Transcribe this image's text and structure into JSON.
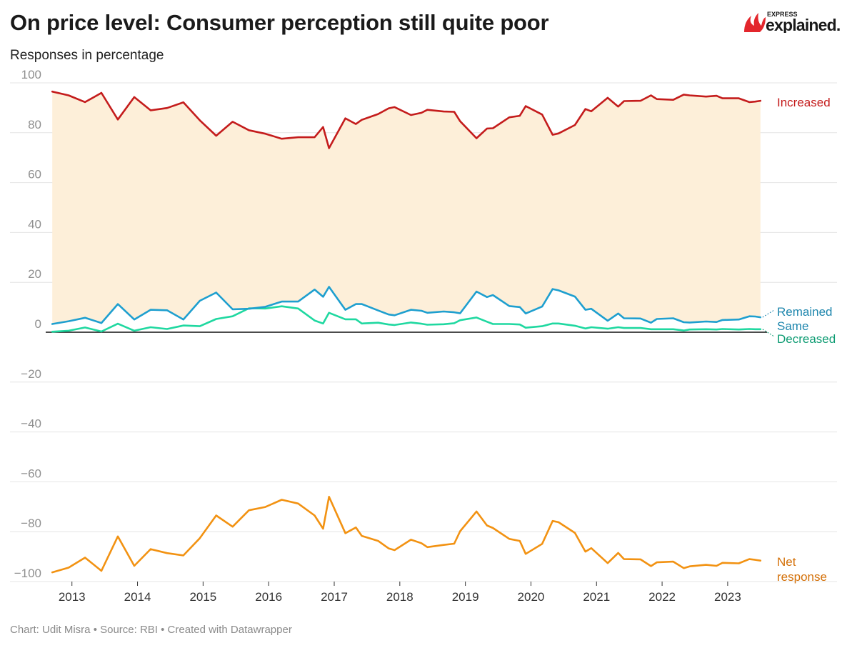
{
  "header": {
    "title": "On price level: Consumer perception still quite poor",
    "subtitle": "Responses in percentage",
    "logo_top": "EXPRESS",
    "logo_main": "explained."
  },
  "footer": {
    "credit": "Chart: Udit Misra • Source: RBI • Created with Datawrapper"
  },
  "colors": {
    "increased": "#c41c1c",
    "remained_same": "#1e9fcf",
    "decreased": "#1fd8a0",
    "net_response": "#f29212",
    "fill": "#fdefd9",
    "logo_red": "#e3262c"
  },
  "chart_data": {
    "type": "line",
    "ylim": [
      -100,
      100
    ],
    "yticks": [
      100,
      80,
      60,
      40,
      20,
      0,
      -20,
      -40,
      -60,
      -80,
      -100
    ],
    "ytick_labels": [
      "100",
      "80",
      "60",
      "40",
      "20",
      "0",
      "−20",
      "−40",
      "−60",
      "−80",
      "−100"
    ],
    "xlim": [
      2012.6,
      2023.6
    ],
    "xticks": [
      2013,
      2014,
      2015,
      2016,
      2017,
      2018,
      2019,
      2020,
      2021,
      2022,
      2023
    ],
    "xtick_labels": [
      "2013",
      "2014",
      "2015",
      "2016",
      "2017",
      "2018",
      "2019",
      "2020",
      "2021",
      "2022",
      "2023"
    ],
    "grid": true,
    "fill_between": [
      "Increased",
      "Remained Same"
    ],
    "x": [
      2012.7,
      2012.95,
      2013.2,
      2013.45,
      2013.7,
      2013.95,
      2014.2,
      2014.45,
      2014.7,
      2014.95,
      2015.2,
      2015.45,
      2015.7,
      2015.95,
      2016.2,
      2016.45,
      2016.7,
      2016.83,
      2016.92,
      2017.17,
      2017.33,
      2017.42,
      2017.67,
      2017.83,
      2017.92,
      2018.17,
      2018.33,
      2018.42,
      2018.67,
      2018.83,
      2018.92,
      2019.17,
      2019.33,
      2019.42,
      2019.67,
      2019.83,
      2019.92,
      2020.17,
      2020.33,
      2020.42,
      2020.67,
      2020.83,
      2020.92,
      2021.17,
      2021.33,
      2021.42,
      2021.67,
      2021.83,
      2021.92,
      2022.17,
      2022.33,
      2022.42,
      2022.67,
      2022.83,
      2022.92,
      2023.17,
      2023.33,
      2023.42,
      2023.5
    ],
    "series": [
      {
        "name": "Increased",
        "label_lines": [
          "Increased"
        ],
        "color": "#c41c1c",
        "values": [
          96.5,
          95,
          92.3,
          96,
          85.3,
          94.3,
          89,
          89.9,
          92.2,
          85,
          78.8,
          84.4,
          81,
          79.6,
          77.6,
          78.2,
          78.2,
          82.3,
          73.8,
          85.8,
          83.5,
          85.2,
          87.5,
          89.8,
          90.3,
          87.1,
          88,
          89.2,
          88.5,
          88.4,
          84.6,
          77.8,
          81.7,
          81.8,
          86.2,
          86.8,
          90.7,
          87.3,
          79.2,
          79.7,
          83.1,
          89.5,
          88.6,
          94,
          90.5,
          92.7,
          92.8,
          95,
          93.5,
          93.2,
          95.3,
          95,
          94.5,
          94.8,
          93.8,
          93.8,
          92.3,
          92.5,
          92.8
        ],
        "text_color": "#c41c1c"
      },
      {
        "name": "Remained Same",
        "label_lines": [
          "Remained",
          "Same"
        ],
        "color": "#1e9fcf",
        "values": [
          3.3,
          4.4,
          5.8,
          3.7,
          11.3,
          5.1,
          9,
          8.8,
          5.1,
          12.6,
          15.9,
          9.2,
          9.4,
          10.2,
          12.3,
          12.3,
          17.1,
          14.2,
          18.2,
          9,
          11.3,
          11.3,
          8.7,
          7.1,
          6.8,
          9,
          8.6,
          7.8,
          8.3,
          8,
          7.6,
          16.3,
          14.1,
          14.9,
          10.5,
          10.1,
          7.5,
          10.3,
          17.3,
          16.8,
          14.3,
          9,
          9.4,
          4.6,
          7.5,
          5.6,
          5.5,
          3.8,
          5.3,
          5.6,
          4,
          3.9,
          4.3,
          4.1,
          4.9,
          5.1,
          6.4,
          6.3,
          6
        ],
        "text_color": "#1e86ad"
      },
      {
        "name": "Decreased",
        "label_lines": [
          "Decreased"
        ],
        "color": "#1fd8a0",
        "values": [
          0.2,
          0.6,
          1.9,
          0.3,
          3.4,
          0.6,
          2,
          1.3,
          2.7,
          2.4,
          5.3,
          6.4,
          9.6,
          9.5,
          10.4,
          9.5,
          4.7,
          3.5,
          7.8,
          5.2,
          5.2,
          3.5,
          3.8,
          3.1,
          2.9,
          3.9,
          3.4,
          3,
          3.2,
          3.6,
          4.8,
          5.9,
          4.2,
          3.3,
          3.3,
          3.1,
          1.8,
          2.4,
          3.5,
          3.5,
          2.6,
          1.5,
          2,
          1.4,
          2,
          1.7,
          1.7,
          1.2,
          1.2,
          1.2,
          0.7,
          1.1,
          1.2,
          1.1,
          1.3,
          1.1,
          1.3,
          1.2,
          1.2
        ],
        "text_color": "#0e9c73"
      },
      {
        "name": "Net response",
        "label_lines": [
          "Net",
          "response"
        ],
        "color": "#f29212",
        "values": [
          -96.3,
          -94.4,
          -90.4,
          -95.7,
          -81.9,
          -93.7,
          -87,
          -88.6,
          -89.5,
          -82.6,
          -73.5,
          -78,
          -71.4,
          -70.1,
          -67.2,
          -68.7,
          -73.5,
          -78.8,
          -66,
          -80.6,
          -78.3,
          -81.7,
          -83.7,
          -86.7,
          -87.4,
          -83.2,
          -84.6,
          -86.2,
          -85.3,
          -84.8,
          -79.8,
          -71.9,
          -77.5,
          -78.5,
          -82.9,
          -83.7,
          -88.9,
          -84.9,
          -75.7,
          -76.2,
          -80.5,
          -88,
          -86.6,
          -92.6,
          -88.5,
          -91,
          -91.1,
          -93.8,
          -92.3,
          -92,
          -94.6,
          -93.9,
          -93.3,
          -93.7,
          -92.5,
          -92.7,
          -91,
          -91.3,
          -91.6
        ],
        "text_color": "#d4710a"
      }
    ]
  }
}
